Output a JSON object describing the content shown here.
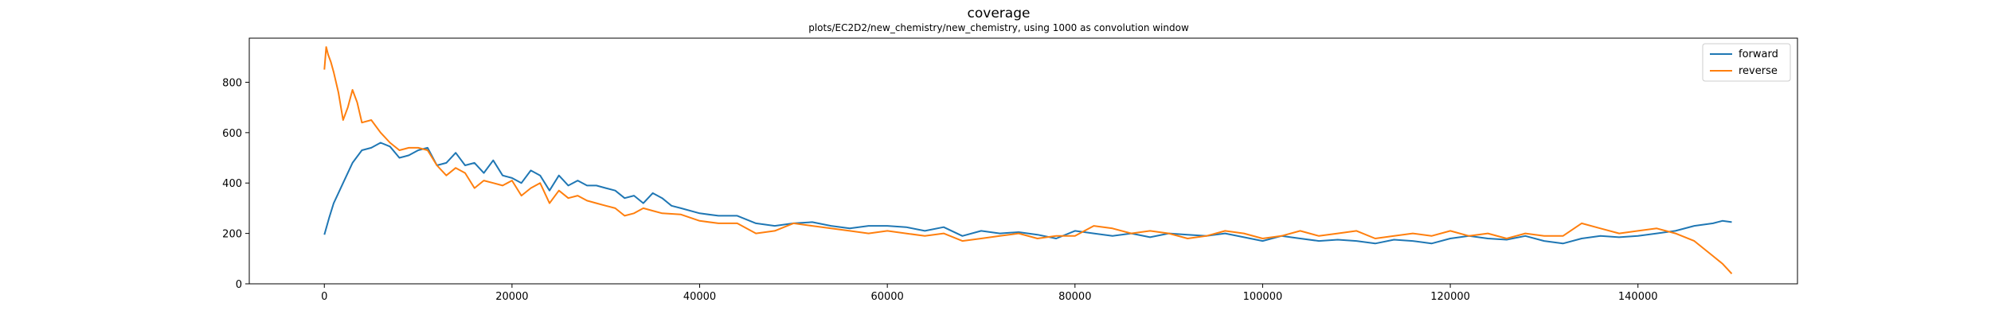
{
  "chart_data": {
    "type": "line",
    "title": "coverage",
    "subtitle": "plots/EC2D2/new_chemistry/new_chemistry, using 1000 as convolution window",
    "xlabel": "",
    "ylabel": "",
    "xlim": [
      -8000,
      157000
    ],
    "ylim": [
      0,
      975
    ],
    "x_ticks": [
      0,
      20000,
      40000,
      60000,
      80000,
      100000,
      120000,
      140000
    ],
    "y_ticks": [
      0,
      200,
      400,
      600,
      800
    ],
    "grid": false,
    "legend_position": "top-right",
    "series": [
      {
        "name": "forward",
        "color": "#1f77b4",
        "x": [
          0,
          500,
          1000,
          1500,
          2000,
          3000,
          4000,
          5000,
          6000,
          7000,
          8000,
          9000,
          10000,
          11000,
          12000,
          13000,
          14000,
          15000,
          16000,
          17000,
          18000,
          19000,
          20000,
          21000,
          22000,
          23000,
          24000,
          25000,
          26000,
          27000,
          28000,
          29000,
          30000,
          31000,
          32000,
          33000,
          34000,
          35000,
          36000,
          37000,
          38000,
          40000,
          42000,
          44000,
          46000,
          48000,
          50000,
          52000,
          54000,
          56000,
          58000,
          60000,
          62000,
          64000,
          66000,
          68000,
          70000,
          72000,
          74000,
          76000,
          78000,
          80000,
          82000,
          84000,
          86000,
          88000,
          90000,
          92000,
          94000,
          96000,
          98000,
          100000,
          102000,
          104000,
          106000,
          108000,
          110000,
          112000,
          114000,
          116000,
          118000,
          120000,
          122000,
          124000,
          126000,
          128000,
          130000,
          132000,
          134000,
          136000,
          138000,
          140000,
          142000,
          144000,
          146000,
          148000,
          149000,
          150000
        ],
        "values": [
          195,
          260,
          320,
          360,
          400,
          480,
          530,
          540,
          560,
          545,
          500,
          510,
          530,
          540,
          470,
          480,
          520,
          470,
          480,
          440,
          490,
          430,
          420,
          400,
          450,
          430,
          370,
          430,
          390,
          410,
          390,
          390,
          380,
          370,
          340,
          350,
          320,
          360,
          340,
          310,
          300,
          280,
          270,
          270,
          240,
          230,
          240,
          245,
          230,
          220,
          230,
          230,
          225,
          210,
          225,
          190,
          210,
          200,
          205,
          195,
          180,
          210,
          200,
          190,
          200,
          185,
          200,
          195,
          190,
          200,
          185,
          170,
          190,
          180,
          170,
          175,
          170,
          160,
          175,
          170,
          160,
          180,
          190,
          180,
          175,
          190,
          170,
          160,
          180,
          190,
          185,
          190,
          200,
          210,
          230,
          240,
          250,
          245
        ]
      },
      {
        "name": "reverse",
        "color": "#ff7f0e",
        "x": [
          0,
          200,
          400,
          700,
          1000,
          1500,
          2000,
          2500,
          3000,
          3500,
          4000,
          5000,
          6000,
          7000,
          8000,
          9000,
          10000,
          11000,
          12000,
          13000,
          14000,
          15000,
          16000,
          17000,
          18000,
          19000,
          20000,
          21000,
          22000,
          23000,
          24000,
          25000,
          26000,
          27000,
          28000,
          29000,
          30000,
          31000,
          32000,
          33000,
          34000,
          35000,
          36000,
          38000,
          40000,
          42000,
          44000,
          46000,
          48000,
          50000,
          52000,
          54000,
          56000,
          58000,
          60000,
          62000,
          64000,
          66000,
          68000,
          70000,
          72000,
          74000,
          76000,
          78000,
          80000,
          82000,
          84000,
          86000,
          88000,
          90000,
          92000,
          94000,
          96000,
          98000,
          100000,
          102000,
          104000,
          106000,
          108000,
          110000,
          112000,
          114000,
          116000,
          118000,
          120000,
          122000,
          124000,
          126000,
          128000,
          130000,
          132000,
          134000,
          136000,
          138000,
          140000,
          142000,
          144000,
          146000,
          147000,
          148000,
          149000,
          150000
        ],
        "values": [
          850,
          940,
          910,
          880,
          840,
          760,
          650,
          700,
          770,
          720,
          640,
          650,
          600,
          560,
          530,
          540,
          540,
          530,
          470,
          430,
          460,
          440,
          380,
          410,
          400,
          390,
          410,
          350,
          380,
          400,
          320,
          370,
          340,
          350,
          330,
          320,
          310,
          300,
          270,
          280,
          300,
          290,
          280,
          275,
          250,
          240,
          240,
          200,
          210,
          240,
          230,
          220,
          210,
          200,
          210,
          200,
          190,
          200,
          170,
          180,
          190,
          200,
          180,
          190,
          190,
          230,
          220,
          200,
          210,
          200,
          180,
          190,
          210,
          200,
          180,
          190,
          210,
          190,
          200,
          210,
          180,
          190,
          200,
          190,
          210,
          190,
          200,
          180,
          200,
          190,
          190,
          240,
          220,
          200,
          210,
          220,
          200,
          170,
          140,
          110,
          80,
          40
        ]
      }
    ]
  }
}
